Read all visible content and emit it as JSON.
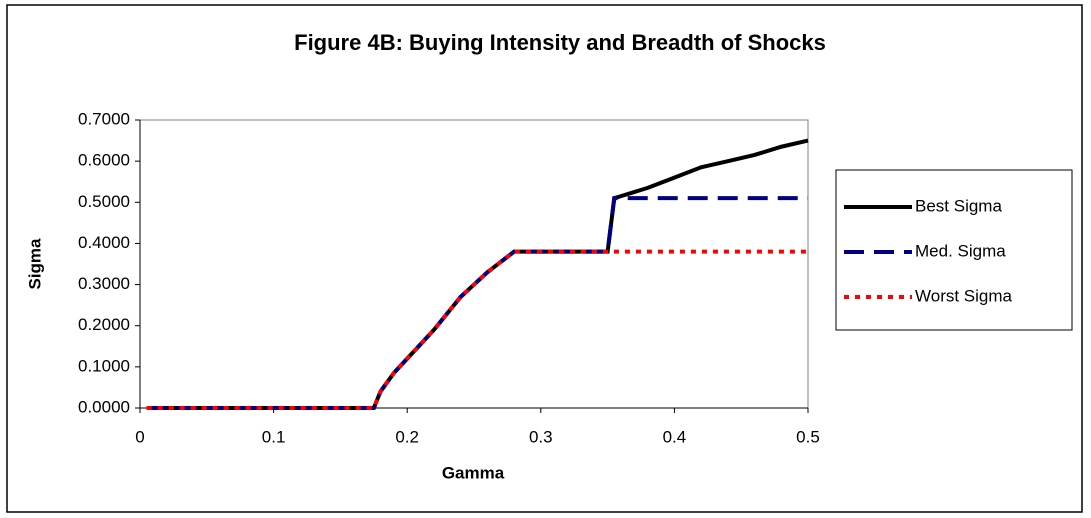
{
  "chart_data": {
    "type": "line",
    "title": "Figure 4B: Buying Intensity and Breadth of Shocks",
    "x_label": "Gamma",
    "y_label": "Sigma",
    "x": [
      0.005,
      0.05,
      0.1,
      0.15,
      0.175,
      0.18,
      0.19,
      0.2,
      0.21,
      0.22,
      0.23,
      0.24,
      0.25,
      0.26,
      0.27,
      0.28,
      0.3,
      0.35,
      0.355,
      0.36,
      0.38,
      0.4,
      0.42,
      0.44,
      0.46,
      0.48,
      0.5
    ],
    "series": [
      {
        "name": "Best Sigma",
        "color": "#000000",
        "dash": "solid",
        "values": [
          0,
          0,
          0,
          0,
          0,
          0.04,
          0.085,
          0.12,
          0.155,
          0.19,
          0.23,
          0.27,
          0.3,
          0.33,
          0.355,
          0.38,
          0.38,
          0.38,
          0.51,
          0.515,
          0.535,
          0.56,
          0.585,
          0.6,
          0.615,
          0.635,
          0.65
        ]
      },
      {
        "name": "Med. Sigma",
        "color": "#000080",
        "dash": "dashed",
        "values": [
          0,
          0,
          0,
          0,
          0,
          0.04,
          0.085,
          0.12,
          0.155,
          0.19,
          0.23,
          0.27,
          0.3,
          0.33,
          0.355,
          0.38,
          0.38,
          0.38,
          0.51,
          0.51,
          0.51,
          0.51,
          0.51,
          0.51,
          0.51,
          0.51,
          0.51
        ]
      },
      {
        "name": "Worst Sigma",
        "color": "#ff0000",
        "dash": "dotted",
        "values": [
          0,
          0,
          0,
          0,
          0,
          0.04,
          0.085,
          0.12,
          0.155,
          0.19,
          0.23,
          0.27,
          0.3,
          0.33,
          0.355,
          0.38,
          0.38,
          0.38,
          0.38,
          0.38,
          0.38,
          0.38,
          0.38,
          0.38,
          0.38,
          0.38,
          0.38
        ]
      }
    ],
    "xlim": [
      0,
      0.5
    ],
    "xticks": [
      0,
      0.1,
      0.2,
      0.3,
      0.4,
      0.5
    ],
    "ylim": [
      0,
      0.7
    ],
    "yticks": [
      {
        "value": 0,
        "label": "0.0000"
      },
      {
        "value": 0.1,
        "label": "0.1000"
      },
      {
        "value": 0.2,
        "label": "0.2000"
      },
      {
        "value": 0.3,
        "label": "0.3000"
      },
      {
        "value": 0.4,
        "label": "0.4000"
      },
      {
        "value": 0.5,
        "label": "0.5000"
      },
      {
        "value": 0.6,
        "label": "0.6000"
      },
      {
        "value": 0.7,
        "label": "0.7000"
      }
    ],
    "legend": "right"
  }
}
